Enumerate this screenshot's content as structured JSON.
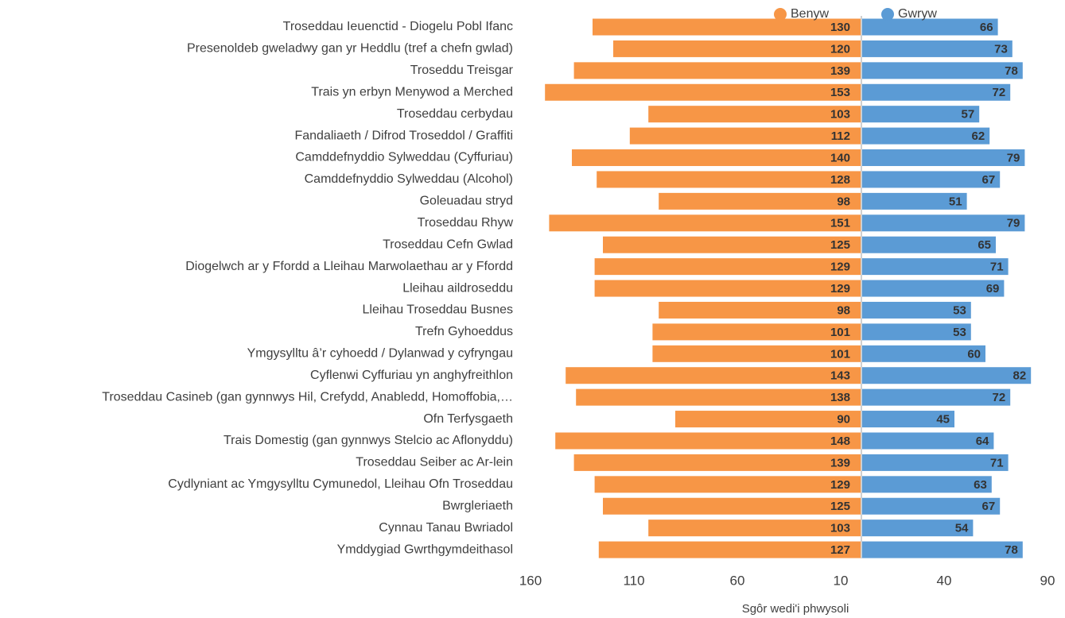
{
  "chart_data": {
    "type": "bar",
    "orientation": "horizontal",
    "x_label": "Sgôr wedi'i phwysoli",
    "categories": [
      "Troseddau Ieuenctid - Diogelu Pobl Ifanc",
      "Presenoldeb gweladwy gan yr Heddlu (tref a chefn gwlad)",
      "Troseddu Treisgar",
      "Trais yn erbyn Menywod a Merched",
      "Troseddau cerbydau",
      "Fandaliaeth / Difrod Troseddol / Graffiti",
      "Camddefnyddio Sylweddau (Cyffuriau)",
      "Camddefnyddio Sylweddau (Alcohol)",
      "Goleuadau stryd",
      "Troseddau Rhyw",
      "Troseddau Cefn Gwlad",
      "Diogelwch ar y Ffordd a Lleihau Marwolaethau ar y Ffordd",
      "Lleihau aildroseddu",
      "Lleihau Troseddau Busnes",
      "Trefn Gyhoeddus",
      "Ymgysylltu â’r cyhoedd / Dylanwad y cyfryngau",
      "Cyflenwi Cyffuriau yn anghyfreithlon",
      "Troseddau Casineb (gan gynnwys Hil, Crefydd, Anabledd, Homoffobia,…",
      "Ofn Terfysgaeth",
      "Trais Domestig (gan gynnwys Stelcio ac Aflonyddu)",
      "Troseddau Seiber ac Ar-lein",
      "Cydlyniant ac Ymgysylltu Cymunedol, Lleihau Ofn Troseddau",
      "Bwrgleriaeth",
      "Cynnau Tanau Bwriadol",
      "Ymddygiad Gwrthgymdeithasol"
    ],
    "series": [
      {
        "name": "Benyw",
        "color": "#f79646",
        "values": [
          -130,
          -120,
          -139,
          -153,
          -103,
          -112,
          -140,
          -128,
          -98,
          -151,
          -125,
          -129,
          -129,
          -98,
          -101,
          -101,
          -143,
          -138,
          -90,
          -148,
          -139,
          -129,
          -125,
          -103,
          -127
        ],
        "value_labels": [
          "130",
          "120",
          "139",
          "153",
          "103",
          "112",
          "140",
          "128",
          "98",
          "151",
          "125",
          "129",
          "129",
          "98",
          "101",
          "101",
          "143",
          "138",
          "90",
          "148",
          "139",
          "129",
          "125",
          "103",
          "127"
        ]
      },
      {
        "name": "Gwryw",
        "color": "#5b9bd5",
        "values": [
          66,
          73,
          78,
          72,
          57,
          62,
          79,
          67,
          51,
          79,
          65,
          71,
          69,
          53,
          53,
          60,
          82,
          72,
          45,
          64,
          71,
          63,
          67,
          54,
          78
        ]
      }
    ],
    "xlim": [
      -160,
      90
    ],
    "xticks": [
      {
        "value": -160,
        "label": "160"
      },
      {
        "value": -110,
        "label": "110"
      },
      {
        "value": -60,
        "label": "60"
      },
      {
        "value": -10,
        "label": "10"
      },
      40,
      90
    ],
    "legend": "top"
  }
}
